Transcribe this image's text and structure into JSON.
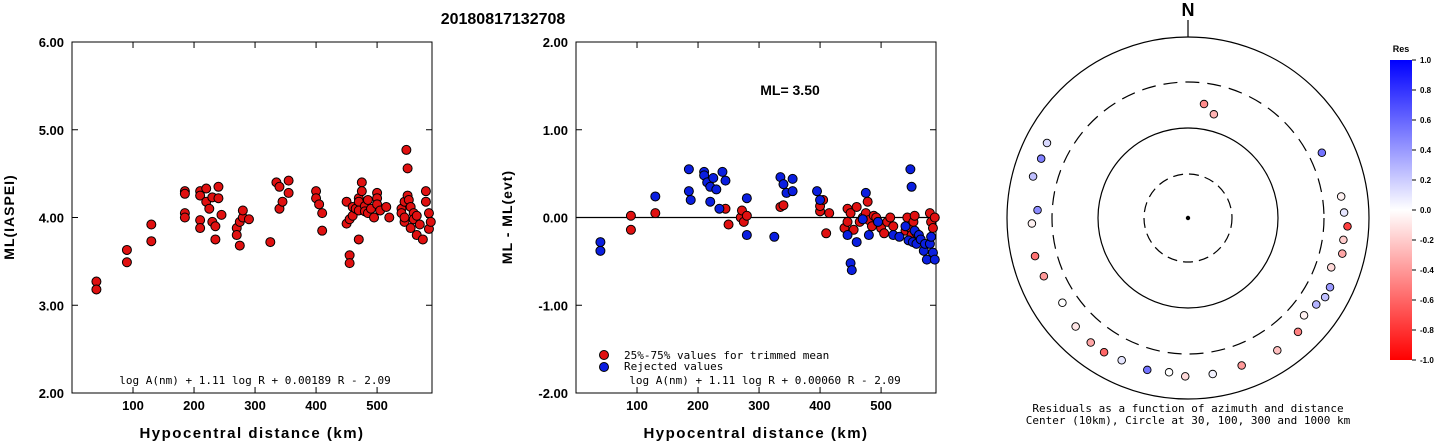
{
  "title": "20180817132708",
  "colors": {
    "used": "#e01010",
    "rejected": "#0a1ee0",
    "edge": "#000000",
    "background": "#ffffff"
  },
  "chart_data": [
    {
      "type": "scatter",
      "xlabel": "Hypocentral distance (km)",
      "ylabel": "ML(IASPEI)",
      "xlim": [
        0,
        590
      ],
      "ylim": [
        2.0,
        6.0
      ],
      "xticks": [
        "100",
        "200",
        "300",
        "400",
        "500"
      ],
      "yticks": [
        "2.00",
        "3.00",
        "4.00",
        "5.00",
        "6.00"
      ],
      "formula": "log A(nm) + 1.11 log R + 0.00189 R - 2.09",
      "series": [
        {
          "color": "#e01010",
          "points": [
            [
              40,
              3.27
            ],
            [
              40,
              3.18
            ],
            [
              90,
              3.63
            ],
            [
              90,
              3.49
            ],
            [
              130,
              3.92
            ],
            [
              130,
              3.73
            ],
            [
              185,
              4.3
            ],
            [
              185,
              4.27
            ],
            [
              185,
              4.05
            ],
            [
              185,
              4.0
            ],
            [
              210,
              4.3
            ],
            [
              210,
              4.25
            ],
            [
              210,
              3.97
            ],
            [
              210,
              3.88
            ],
            [
              220,
              4.33
            ],
            [
              220,
              4.18
            ],
            [
              225,
              4.1
            ],
            [
              230,
              4.23
            ],
            [
              230,
              3.95
            ],
            [
              235,
              3.9
            ],
            [
              235,
              3.75
            ],
            [
              240,
              4.35
            ],
            [
              240,
              4.22
            ],
            [
              245,
              4.03
            ],
            [
              270,
              3.88
            ],
            [
              270,
              3.8
            ],
            [
              275,
              3.68
            ],
            [
              275,
              3.95
            ],
            [
              280,
              4.0
            ],
            [
              280,
              4.08
            ],
            [
              290,
              3.98
            ],
            [
              325,
              3.72
            ],
            [
              335,
              4.4
            ],
            [
              340,
              4.35
            ],
            [
              340,
              4.1
            ],
            [
              345,
              4.18
            ],
            [
              355,
              4.42
            ],
            [
              355,
              4.28
            ],
            [
              400,
              4.3
            ],
            [
              400,
              4.22
            ],
            [
              405,
              4.15
            ],
            [
              410,
              3.85
            ],
            [
              410,
              4.05
            ],
            [
              450,
              4.18
            ],
            [
              450,
              3.93
            ],
            [
              455,
              3.57
            ],
            [
              455,
              3.48
            ],
            [
              455,
              3.98
            ],
            [
              460,
              4.02
            ],
            [
              460,
              4.12
            ],
            [
              465,
              4.1
            ],
            [
              470,
              4.22
            ],
            [
              470,
              4.18
            ],
            [
              470,
              4.08
            ],
            [
              470,
              3.75
            ],
            [
              475,
              4.4
            ],
            [
              475,
              4.3
            ],
            [
              480,
              4.13
            ],
            [
              480,
              4.07
            ],
            [
              485,
              4.2
            ],
            [
              485,
              4.05
            ],
            [
              490,
              4.1
            ],
            [
              495,
              4.0
            ],
            [
              500,
              4.28
            ],
            [
              500,
              4.22
            ],
            [
              500,
              4.15
            ],
            [
              505,
              4.08
            ],
            [
              515,
              4.12
            ],
            [
              520,
              4.0
            ],
            [
              540,
              4.1
            ],
            [
              540,
              4.05
            ],
            [
              545,
              4.18
            ],
            [
              545,
              3.95
            ],
            [
              545,
              4.0
            ],
            [
              548,
              4.77
            ],
            [
              550,
              4.56
            ],
            [
              550,
              4.25
            ],
            [
              552,
              4.2
            ],
            [
              555,
              3.88
            ],
            [
              555,
              4.12
            ],
            [
              560,
              4.05
            ],
            [
              560,
              3.98
            ],
            [
              565,
              3.8
            ],
            [
              565,
              4.02
            ],
            [
              570,
              3.92
            ],
            [
              575,
              3.75
            ],
            [
              580,
              4.3
            ],
            [
              580,
              4.18
            ],
            [
              585,
              4.05
            ],
            [
              585,
              3.87
            ],
            [
              588,
              3.95
            ]
          ]
        }
      ]
    },
    {
      "type": "scatter",
      "xlabel": "Hypocentral distance (km)",
      "ylabel": "ML - ML(evt)",
      "xlim": [
        0,
        590
      ],
      "ylim": [
        -2.0,
        2.0
      ],
      "xticks": [
        "100",
        "200",
        "300",
        "400",
        "500"
      ],
      "yticks": [
        "-2.00",
        "-1.00",
        "0.00",
        "1.00",
        "2.00"
      ],
      "annotation": "ML= 3.50",
      "formula": "log A(nm) + 1.11 log R + 0.00060 R - 2.09",
      "series": [
        {
          "name": "25%-75% values for trimmed mean",
          "color": "#e01010",
          "points": [
            [
              90,
              0.02
            ],
            [
              90,
              -0.14
            ],
            [
              130,
              0.05
            ],
            [
              245,
              0.1
            ],
            [
              250,
              -0.08
            ],
            [
              270,
              0.0
            ],
            [
              272,
              0.08
            ],
            [
              275,
              -0.05
            ],
            [
              280,
              0.02
            ],
            [
              335,
              0.12
            ],
            [
              340,
              0.14
            ],
            [
              400,
              0.07
            ],
            [
              400,
              0.13
            ],
            [
              405,
              0.2
            ],
            [
              410,
              -0.18
            ],
            [
              415,
              0.05
            ],
            [
              440,
              -0.12
            ],
            [
              445,
              -0.05
            ],
            [
              445,
              0.1
            ],
            [
              450,
              0.05
            ],
            [
              455,
              -0.14
            ],
            [
              460,
              0.12
            ],
            [
              465,
              -0.05
            ],
            [
              470,
              0.0
            ],
            [
              475,
              0.05
            ],
            [
              478,
              0.18
            ],
            [
              480,
              -0.03
            ],
            [
              485,
              -0.1
            ],
            [
              488,
              0.02
            ],
            [
              492,
              0.0
            ],
            [
              495,
              -0.05
            ],
            [
              500,
              -0.12
            ],
            [
              505,
              -0.18
            ],
            [
              510,
              -0.05
            ],
            [
              515,
              0.0
            ],
            [
              520,
              -0.1
            ],
            [
              540,
              -0.15
            ],
            [
              543,
              0.0
            ],
            [
              548,
              -0.12
            ],
            [
              550,
              -0.2
            ],
            [
              553,
              -0.05
            ],
            [
              555,
              0.02
            ],
            [
              558,
              -0.18
            ],
            [
              580,
              0.05
            ],
            [
              582,
              -0.05
            ],
            [
              585,
              -0.12
            ],
            [
              588,
              0.0
            ]
          ]
        },
        {
          "name": "Rejected values",
          "color": "#0a1ee0",
          "points": [
            [
              40,
              -0.28
            ],
            [
              40,
              -0.38
            ],
            [
              130,
              0.24
            ],
            [
              185,
              0.55
            ],
            [
              185,
              0.3
            ],
            [
              188,
              0.2
            ],
            [
              210,
              0.52
            ],
            [
              210,
              0.48
            ],
            [
              215,
              0.4
            ],
            [
              220,
              0.35
            ],
            [
              220,
              0.18
            ],
            [
              225,
              0.45
            ],
            [
              230,
              0.32
            ],
            [
              235,
              0.1
            ],
            [
              240,
              0.52
            ],
            [
              245,
              0.42
            ],
            [
              280,
              0.22
            ],
            [
              280,
              -0.2
            ],
            [
              325,
              -0.22
            ],
            [
              335,
              0.46
            ],
            [
              340,
              0.38
            ],
            [
              345,
              0.28
            ],
            [
              355,
              0.44
            ],
            [
              355,
              0.3
            ],
            [
              395,
              0.3
            ],
            [
              400,
              0.2
            ],
            [
              445,
              -0.2
            ],
            [
              450,
              -0.52
            ],
            [
              452,
              -0.6
            ],
            [
              460,
              -0.28
            ],
            [
              470,
              -0.02
            ],
            [
              475,
              0.28
            ],
            [
              480,
              -0.2
            ],
            [
              495,
              -0.05
            ],
            [
              520,
              -0.2
            ],
            [
              530,
              -0.22
            ],
            [
              540,
              -0.1
            ],
            [
              545,
              -0.26
            ],
            [
              548,
              0.55
            ],
            [
              550,
              0.35
            ],
            [
              552,
              -0.28
            ],
            [
              555,
              -0.15
            ],
            [
              558,
              -0.3
            ],
            [
              562,
              -0.2
            ],
            [
              565,
              -0.25
            ],
            [
              570,
              -0.38
            ],
            [
              572,
              -0.3
            ],
            [
              575,
              -0.48
            ],
            [
              580,
              -0.3
            ],
            [
              582,
              -0.22
            ],
            [
              585,
              -0.4
            ],
            [
              588,
              -0.48
            ]
          ]
        }
      ]
    },
    {
      "type": "polar",
      "north_label": "N",
      "caption_line1": "Residuals as a function of azimuth and distance",
      "caption_line2": "Center (10km), Circle at 30, 100, 300 and 1000 km",
      "colorbar_title": "Res",
      "colorbar_ticks": [
        "1.0",
        "0.8",
        "0.6",
        "0.4",
        "0.2",
        "0.0",
        "-0.2",
        "-0.4",
        "-0.6",
        "-0.8",
        "-1.0"
      ],
      "rings_km": [
        30,
        100,
        300,
        1000
      ],
      "points": [
        {
          "azimuth": 8,
          "distance_km": 185,
          "residual": -0.45
        },
        {
          "azimuth": 14,
          "distance_km": 150,
          "residual": -0.3
        },
        {
          "azimuth": 64,
          "distance_km": 440,
          "residual": 0.55
        },
        {
          "azimuth": 82,
          "distance_km": 510,
          "residual": -0.05
        },
        {
          "azimuth": 88,
          "distance_km": 530,
          "residual": 0.1
        },
        {
          "azimuth": 93,
          "distance_km": 580,
          "residual": -0.75
        },
        {
          "azimuth": 98,
          "distance_km": 540,
          "residual": -0.2
        },
        {
          "azimuth": 103,
          "distance_km": 560,
          "residual": -0.35
        },
        {
          "azimuth": 109,
          "distance_km": 470,
          "residual": -0.15
        },
        {
          "azimuth": 116,
          "distance_km": 555,
          "residual": 0.4
        },
        {
          "azimuth": 120,
          "distance_km": 560,
          "residual": 0.25
        },
        {
          "azimuth": 124,
          "distance_km": 510,
          "residual": 0.3
        },
        {
          "azimuth": 130,
          "distance_km": 470,
          "residual": -0.05
        },
        {
          "azimuth": 136,
          "distance_km": 560,
          "residual": -0.5
        },
        {
          "azimuth": 146,
          "distance_km": 580,
          "residual": -0.25
        },
        {
          "azimuth": 160,
          "distance_km": 540,
          "residual": -0.4
        },
        {
          "azimuth": 171,
          "distance_km": 555,
          "residual": 0.05
        },
        {
          "azimuth": 181,
          "distance_km": 560,
          "residual": -0.15
        },
        {
          "azimuth": 187,
          "distance_km": 520,
          "residual": 0.0
        },
        {
          "azimuth": 195,
          "distance_km": 545,
          "residual": 0.55
        },
        {
          "azimuth": 205,
          "distance_km": 540,
          "residual": 0.1
        },
        {
          "azimuth": 212,
          "distance_km": 560,
          "residual": -0.6
        },
        {
          "azimuth": 218,
          "distance_km": 555,
          "residual": -0.35
        },
        {
          "azimuth": 226,
          "distance_km": 530,
          "residual": -0.1
        },
        {
          "azimuth": 236,
          "distance_km": 470,
          "residual": 0.0
        },
        {
          "azimuth": 248,
          "distance_km": 520,
          "residual": -0.4
        },
        {
          "azimuth": 256,
          "distance_km": 550,
          "residual": -0.55
        },
        {
          "azimuth": 268,
          "distance_km": 530,
          "residual": -0.05
        },
        {
          "azimuth": 273,
          "distance_km": 460,
          "residual": 0.45
        },
        {
          "azimuth": 285,
          "distance_km": 590,
          "residual": 0.25
        },
        {
          "azimuth": 292,
          "distance_km": 560,
          "residual": 0.5
        },
        {
          "azimuth": 298,
          "distance_km": 580,
          "residual": 0.15
        }
      ]
    }
  ]
}
